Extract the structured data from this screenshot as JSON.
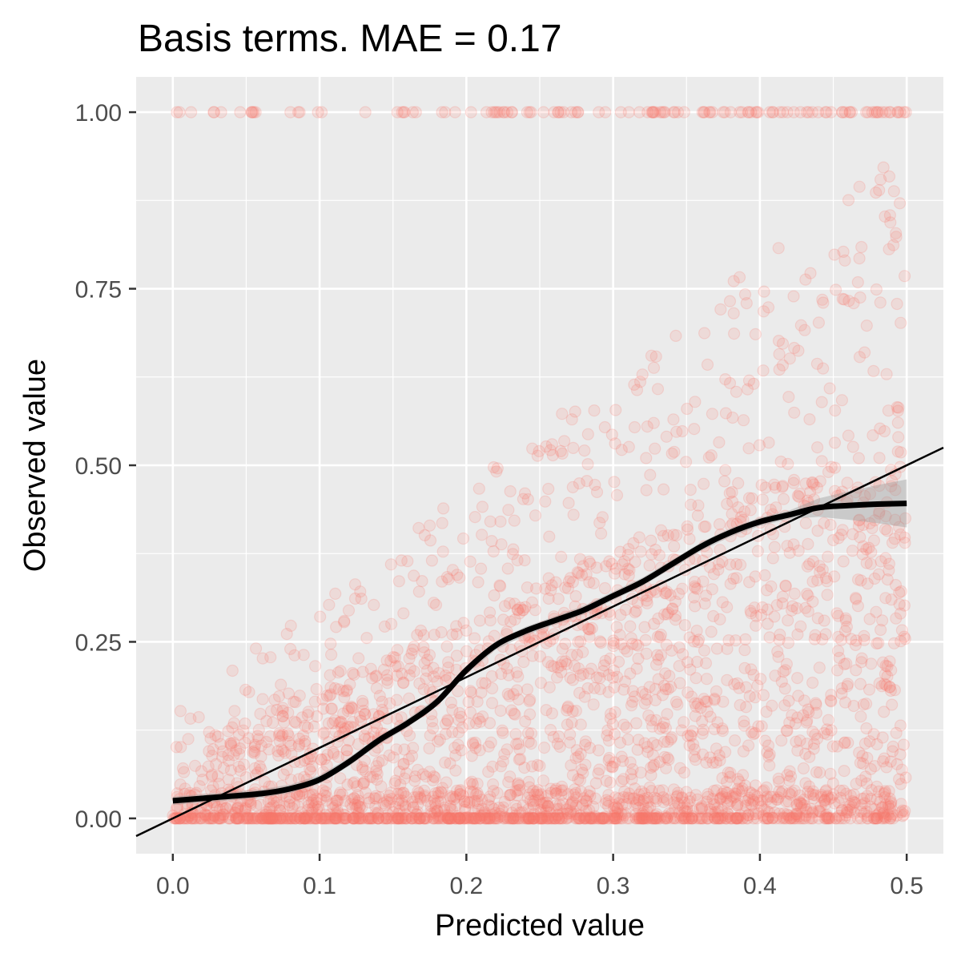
{
  "chart_data": {
    "type": "scatter",
    "title": "Basis terms. MAE = 0.17",
    "xlabel": "Predicted value",
    "ylabel": "Observed value",
    "xlim": [
      -0.025,
      0.525
    ],
    "ylim": [
      -0.05,
      1.05
    ],
    "x_ticks": [
      0.0,
      0.1,
      0.2,
      0.3,
      0.4,
      0.5
    ],
    "x_tick_labels": [
      "0.0",
      "0.1",
      "0.2",
      "0.3",
      "0.4",
      "0.5"
    ],
    "y_ticks": [
      0.0,
      0.25,
      0.5,
      0.75,
      1.0
    ],
    "y_tick_labels": [
      "0.00",
      "0.25",
      "0.50",
      "0.75",
      "1.00"
    ],
    "grid": true,
    "legend": "none",
    "colors": {
      "points": "#f8766d",
      "panel": "#ebebeb",
      "grid": "#ffffff",
      "smooth": "#000000",
      "ribbon": "#999999",
      "reference": "#000000"
    },
    "points": {
      "x_range": [
        0.0,
        0.5
      ],
      "y_range": [
        0.0,
        1.0
      ],
      "opacity": 0.15,
      "note_exact_one_and_zero_rows": "many observations at y = 0 and y = 1"
    },
    "reference_line": {
      "intercept": 0.0,
      "slope": 1.0
    },
    "smooth_curve": {
      "x": [
        0.0,
        0.03,
        0.06,
        0.08,
        0.1,
        0.12,
        0.14,
        0.16,
        0.18,
        0.2,
        0.22,
        0.24,
        0.26,
        0.28,
        0.3,
        0.32,
        0.34,
        0.36,
        0.38,
        0.4,
        0.42,
        0.44,
        0.46,
        0.48,
        0.5
      ],
      "y": [
        0.025,
        0.03,
        0.035,
        0.042,
        0.055,
        0.08,
        0.11,
        0.135,
        0.165,
        0.21,
        0.245,
        0.265,
        0.28,
        0.295,
        0.315,
        0.335,
        0.36,
        0.385,
        0.405,
        0.42,
        0.43,
        0.44,
        0.443,
        0.445,
        0.446
      ]
    }
  }
}
